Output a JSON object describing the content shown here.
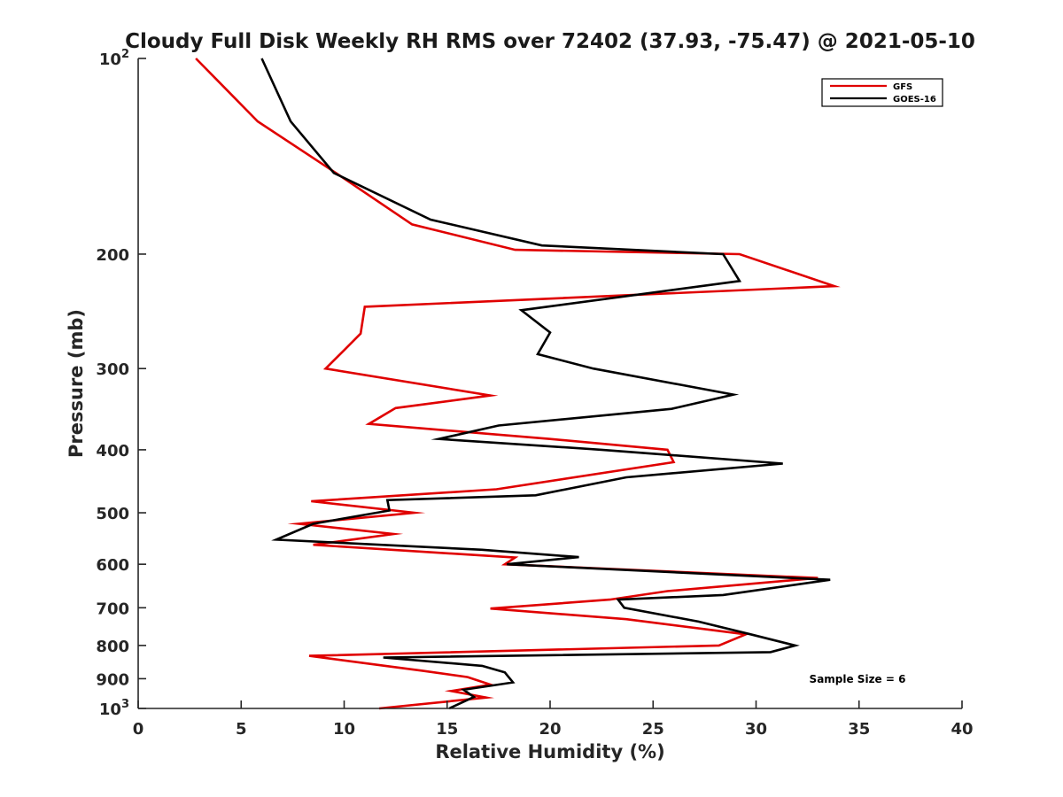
{
  "chart_data": {
    "type": "line",
    "title": "Cloudy Full Disk Weekly RH RMS over 72402 (37.93, -75.47) @ 2021-05-10",
    "xlabel": "Relative Humidity (%)",
    "ylabel": "Pressure (mb)",
    "xlim": [
      0,
      40
    ],
    "ylim": [
      100,
      1000
    ],
    "yscale": "log",
    "y_reversed": true,
    "grid": false,
    "legend_position": "top-right",
    "x_ticks": [
      "0",
      "5",
      "10",
      "15",
      "20",
      "25",
      "30",
      "35",
      "40"
    ],
    "y_ticks": [
      {
        "value": 100,
        "base": "10",
        "exp": "2"
      },
      {
        "value": 200,
        "label": "200"
      },
      {
        "value": 300,
        "label": "300"
      },
      {
        "value": 400,
        "label": "400"
      },
      {
        "value": 500,
        "label": "500"
      },
      {
        "value": 600,
        "label": "600"
      },
      {
        "value": 700,
        "label": "700"
      },
      {
        "value": 800,
        "label": "800"
      },
      {
        "value": 900,
        "label": "900"
      },
      {
        "value": 1000,
        "base": "10",
        "exp": "3"
      }
    ],
    "series": [
      {
        "name": "GFS",
        "color": "#e00000",
        "points": [
          [
            2.8,
            100
          ],
          [
            5.8,
            125
          ],
          [
            9.6,
            150
          ],
          [
            13.3,
            180
          ],
          [
            18.3,
            197
          ],
          [
            29.2,
            200
          ],
          [
            33.8,
            224
          ],
          [
            11.0,
            241
          ],
          [
            10.8,
            265
          ],
          [
            10.0,
            281
          ],
          [
            9.1,
            300
          ],
          [
            17.1,
            330
          ],
          [
            12.5,
            345
          ],
          [
            11.2,
            365
          ],
          [
            20.0,
            385
          ],
          [
            25.7,
            400
          ],
          [
            26.0,
            418
          ],
          [
            17.4,
            460
          ],
          [
            8.4,
            480
          ],
          [
            13.4,
            500
          ],
          [
            7.8,
            520
          ],
          [
            12.4,
            539
          ],
          [
            8.5,
            560
          ],
          [
            18.3,
            586
          ],
          [
            17.8,
            600
          ],
          [
            33.0,
            630
          ],
          [
            25.7,
            660
          ],
          [
            22.9,
            680
          ],
          [
            17.1,
            702
          ],
          [
            23.7,
            729
          ],
          [
            29.5,
            769
          ],
          [
            28.2,
            800
          ],
          [
            8.3,
            830
          ],
          [
            12.0,
            860
          ],
          [
            13.8,
            875
          ],
          [
            16.0,
            895
          ],
          [
            17.1,
            919
          ],
          [
            15.2,
            940
          ],
          [
            16.9,
            962
          ],
          [
            11.7,
            1000
          ]
        ]
      },
      {
        "name": "GOES-16",
        "color": "#000000",
        "points": [
          [
            6.0,
            100
          ],
          [
            7.4,
            125
          ],
          [
            9.5,
            150
          ],
          [
            14.2,
            177
          ],
          [
            19.6,
            194
          ],
          [
            28.4,
            200
          ],
          [
            29.2,
            220
          ],
          [
            18.6,
            244
          ],
          [
            20.0,
            264
          ],
          [
            19.4,
            285
          ],
          [
            22.1,
            300
          ],
          [
            28.9,
            329
          ],
          [
            25.9,
            346
          ],
          [
            17.5,
            367
          ],
          [
            14.6,
            385
          ],
          [
            22.5,
            400
          ],
          [
            31.3,
            420
          ],
          [
            23.7,
            441
          ],
          [
            19.3,
            470
          ],
          [
            12.1,
            478
          ],
          [
            12.2,
            496
          ],
          [
            8.5,
            520
          ],
          [
            6.7,
            550
          ],
          [
            16.7,
            570
          ],
          [
            21.4,
            585
          ],
          [
            17.9,
            600
          ],
          [
            33.6,
            634
          ],
          [
            28.4,
            669
          ],
          [
            23.3,
            680
          ],
          [
            23.6,
            700
          ],
          [
            27.2,
            735
          ],
          [
            29.8,
            770
          ],
          [
            31.9,
            800
          ],
          [
            30.7,
            819
          ],
          [
            11.9,
            835
          ],
          [
            16.7,
            860
          ],
          [
            17.8,
            880
          ],
          [
            18.2,
            912
          ],
          [
            15.8,
            936
          ],
          [
            16.3,
            960
          ],
          [
            15.1,
            1000
          ]
        ]
      }
    ],
    "legend": [
      "GFS",
      "GOES-16"
    ],
    "annotation": "Sample Size = 6"
  }
}
